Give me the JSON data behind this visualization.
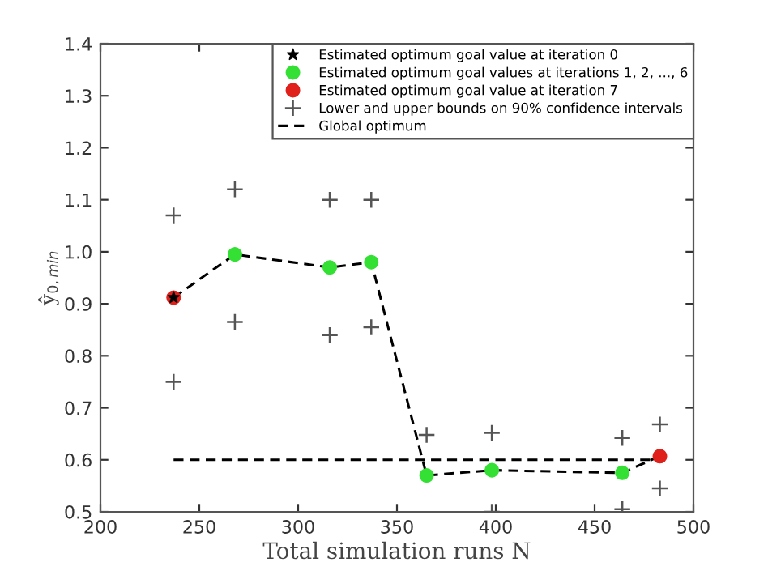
{
  "chart_data": {
    "type": "scatter",
    "xlabel": "Total simulation runs N",
    "ylabel": "ŷ$_{0,min}$",
    "xlim": [
      200,
      500
    ],
    "ylim": [
      0.5,
      1.4
    ],
    "xticks": [
      200,
      250,
      300,
      350,
      400,
      450,
      500
    ],
    "yticks": [
      0.5,
      0.6,
      0.7,
      0.8,
      0.9,
      {
        "value": 1.0,
        "label": "1.0"
      },
      1.1,
      1.2,
      1.3,
      1.4
    ],
    "grid": false,
    "legend": "top right",
    "series": [
      {
        "type": "line",
        "color": "#000000",
        "marker": "none",
        "line_style": "dashed",
        "x": [
          237,
          268,
          316,
          337,
          365,
          398,
          464,
          483
        ],
        "values": [
          0.912,
          0.995,
          0.97,
          0.98,
          0.57,
          0.58,
          0.575,
          0.607
        ]
      },
      {
        "name": "Estimated optimum goal value at iteration 0",
        "color": "#000000",
        "marker": "star",
        "x": [
          237
        ],
        "values": [
          0.912
        ]
      },
      {
        "name": "Estimated optimum goal values at iterations 1, 2, ..., 6",
        "color": "#33e033",
        "marker": "circle",
        "x": [
          268,
          316,
          337,
          365,
          398,
          464
        ],
        "values": [
          0.995,
          0.97,
          0.98,
          0.57,
          0.58,
          0.575
        ]
      },
      {
        "name": "Estimated optimum goal value at iteration 7",
        "color": "#e0201a",
        "marker": "circle",
        "x": [
          237,
          483
        ],
        "values": [
          0.912,
          0.607
        ]
      },
      {
        "name": "Lower and upper bounds on 90% confidence intervals",
        "color": "#555555",
        "marker": "cross",
        "x": [
          237,
          237,
          268,
          268,
          316,
          316,
          337,
          337,
          365,
          398,
          398,
          464,
          464,
          483,
          483
        ],
        "values": [
          1.07,
          0.75,
          1.12,
          0.865,
          1.1,
          0.84,
          1.1,
          0.855,
          0.648,
          0.652,
          0.5,
          0.642,
          0.505,
          0.668,
          0.545
        ]
      },
      {
        "name": "Global optimum",
        "type": "line",
        "color": "#000000",
        "marker": "none",
        "line_style": "dashed",
        "x": [
          237,
          483
        ],
        "values": [
          0.6,
          0.6
        ]
      }
    ]
  }
}
